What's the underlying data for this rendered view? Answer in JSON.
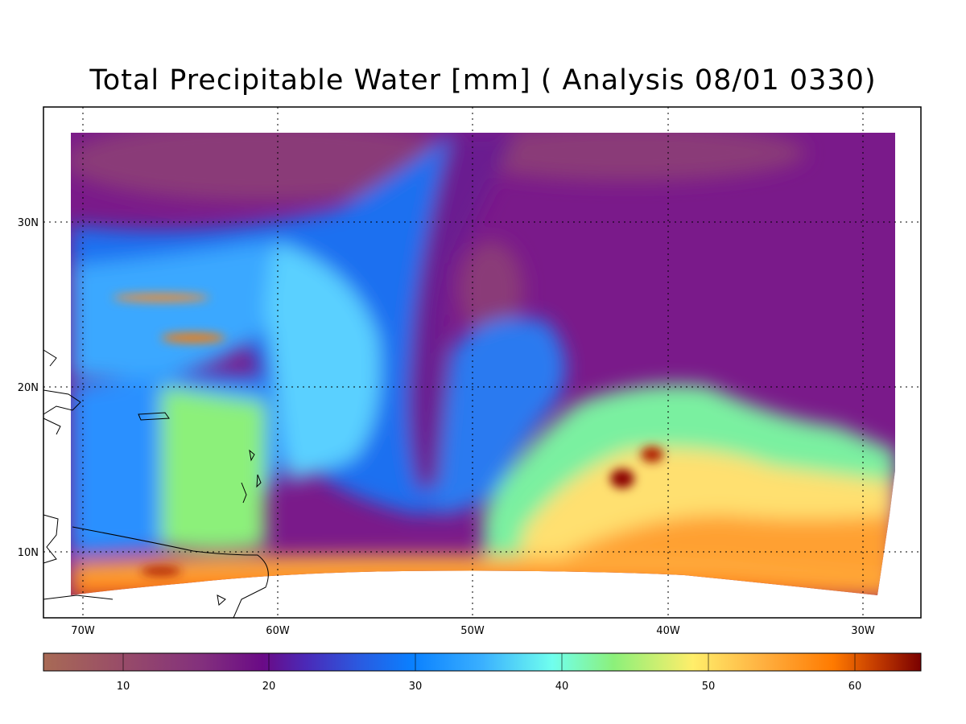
{
  "title": "Total Precipitable Water [mm]  (  Analysis  08/01 0330)",
  "map": {
    "lon_ticks": [
      "70W",
      "60W",
      "50W",
      "40W",
      "30W"
    ],
    "lat_ticks": [
      "30N",
      "20N",
      "10N"
    ],
    "grid": "dotted"
  },
  "colorbar": {
    "labels": [
      "10",
      "20",
      "30",
      "40",
      "50",
      "60"
    ],
    "colors": [
      "#a86a55",
      "#8a3a78",
      "#6a0a86",
      "#3f3fc6",
      "#0a80ff",
      "#3ab0ff",
      "#70ffee",
      "#8cf07a",
      "#ffee6a",
      "#ffb040",
      "#ff7a00",
      "#c23a00",
      "#7a0000"
    ]
  }
}
